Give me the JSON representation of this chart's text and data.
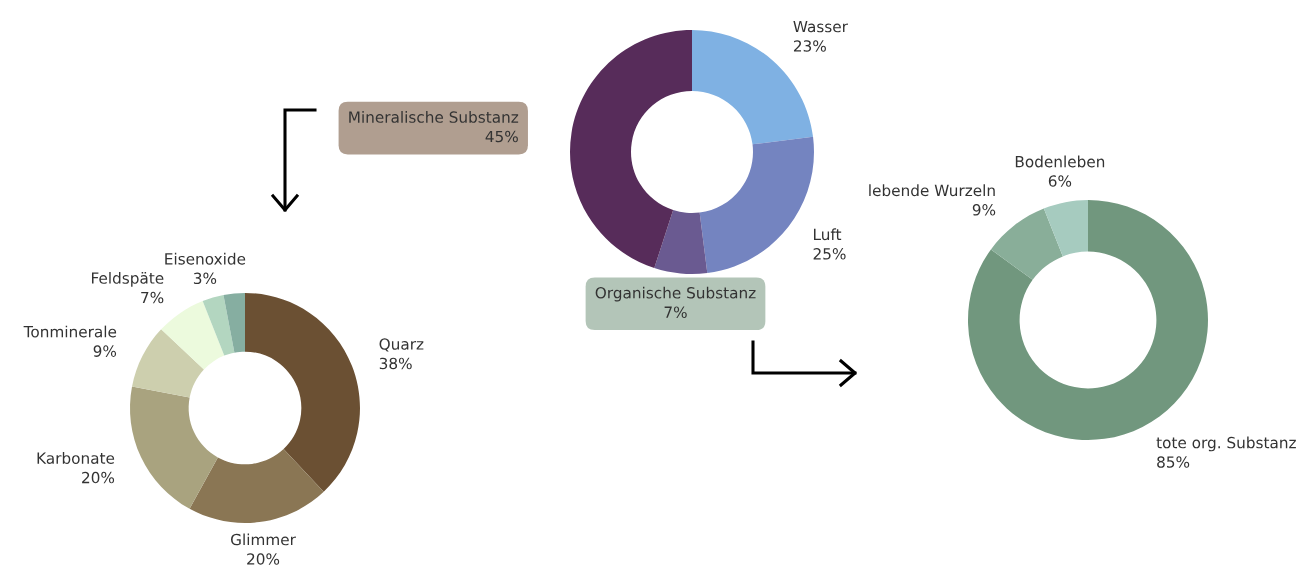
{
  "chart_data": [
    {
      "type": "donut",
      "categories": [
        "Wasser",
        "Luft",
        "Organische Substanz",
        "Mineralische Substanz"
      ],
      "values": [
        23,
        25,
        7,
        45
      ],
      "value_labels": [
        "23%",
        "25%",
        "7%",
        "45%"
      ],
      "colors": [
        "#7fb1e3",
        "#7484c0",
        "#6a5a91",
        "#572c5a"
      ]
    },
    {
      "type": "donut",
      "categories": [
        "Quarz",
        "Glimmer",
        "Karbonate",
        "Tonminerale",
        "Feldspäte",
        "Eisenoxide",
        null
      ],
      "values": [
        38,
        20,
        20,
        9,
        7,
        3,
        3
      ],
      "value_labels": [
        "38%",
        "20%",
        "20%",
        "9%",
        "7%",
        "3%",
        null
      ],
      "colors": [
        "#6b5033",
        "#8a7654",
        "#a9a37f",
        "#cdcfae",
        "#ecfadd",
        "#b3d6c0",
        "#86aea1"
      ]
    },
    {
      "type": "donut",
      "categories": [
        "tote org. Substanz",
        "lebende Wurzeln",
        "Bodenleben"
      ],
      "values": [
        85,
        9,
        6
      ],
      "value_labels": [
        "85%",
        "9%",
        "6%"
      ],
      "colors": [
        "#71977e",
        "#89ae99",
        "#a6cbbf"
      ]
    }
  ]
}
